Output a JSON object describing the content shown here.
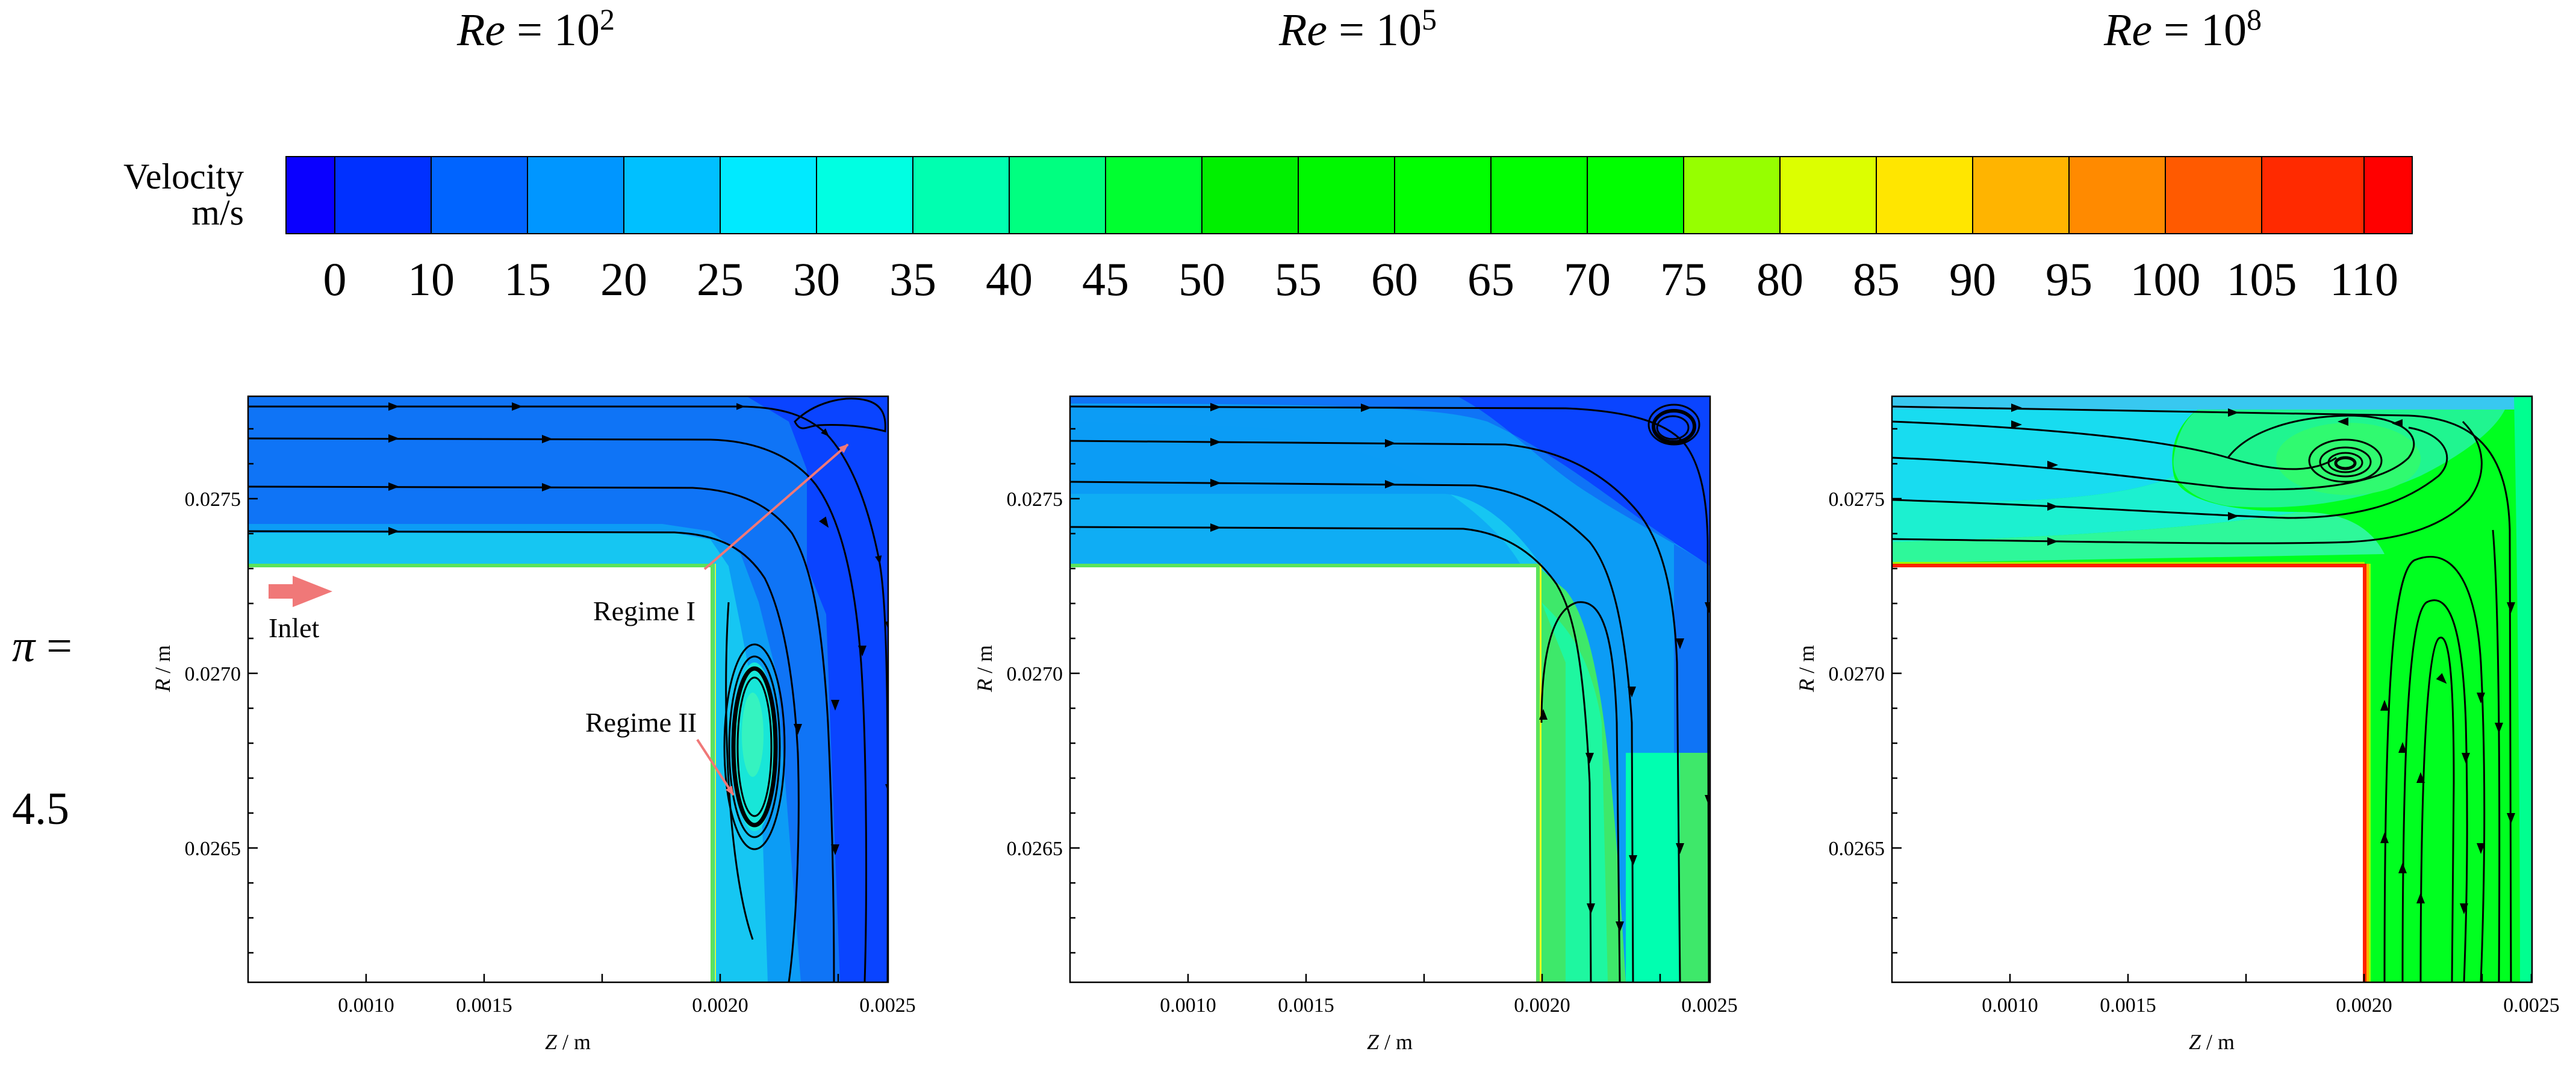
{
  "columns": [
    {
      "re_text": "Re",
      "eq": " = 10",
      "exp": "2"
    },
    {
      "re_text": "Re",
      "eq": " = 10",
      "exp": "5"
    },
    {
      "re_text": "Re",
      "eq": " = 10",
      "exp": "8"
    }
  ],
  "row_label": {
    "line1": "π =",
    "line2": "4.5"
  },
  "colorbar": {
    "title_line1": "Velocity",
    "title_line2": "m/s",
    "ticks": [
      "0",
      "10",
      "15",
      "20",
      "25",
      "30",
      "35",
      "40",
      "45",
      "50",
      "55",
      "60",
      "65",
      "70",
      "75",
      "80",
      "85",
      "90",
      "95",
      "100",
      "105",
      "110"
    ],
    "colors": [
      "#0a00ff",
      "#0030ff",
      "#0064ff",
      "#0096ff",
      "#00c0ff",
      "#00eaff",
      "#00ffe2",
      "#00ffb0",
      "#00ff80",
      "#00ff30",
      "#00f000",
      "#00f800",
      "#00ff00",
      "#00ff00",
      "#00ff00",
      "#96ff00",
      "#dcff00",
      "#ffe600",
      "#ffb400",
      "#ff8a00",
      "#ff5a00",
      "#ff2a00",
      "#ff0000"
    ]
  },
  "axes": {
    "xlabel": "Z / m",
    "ylabel": "R / m",
    "xticks": [
      "0.0010",
      "0.0015",
      "0.0020",
      "0.0025"
    ],
    "yticks": [
      "0.0275",
      "0.0270",
      "0.0265"
    ]
  },
  "annotations": {
    "inlet": "Inlet",
    "regime1": "Regime I",
    "regime2": "Regime II"
  }
}
